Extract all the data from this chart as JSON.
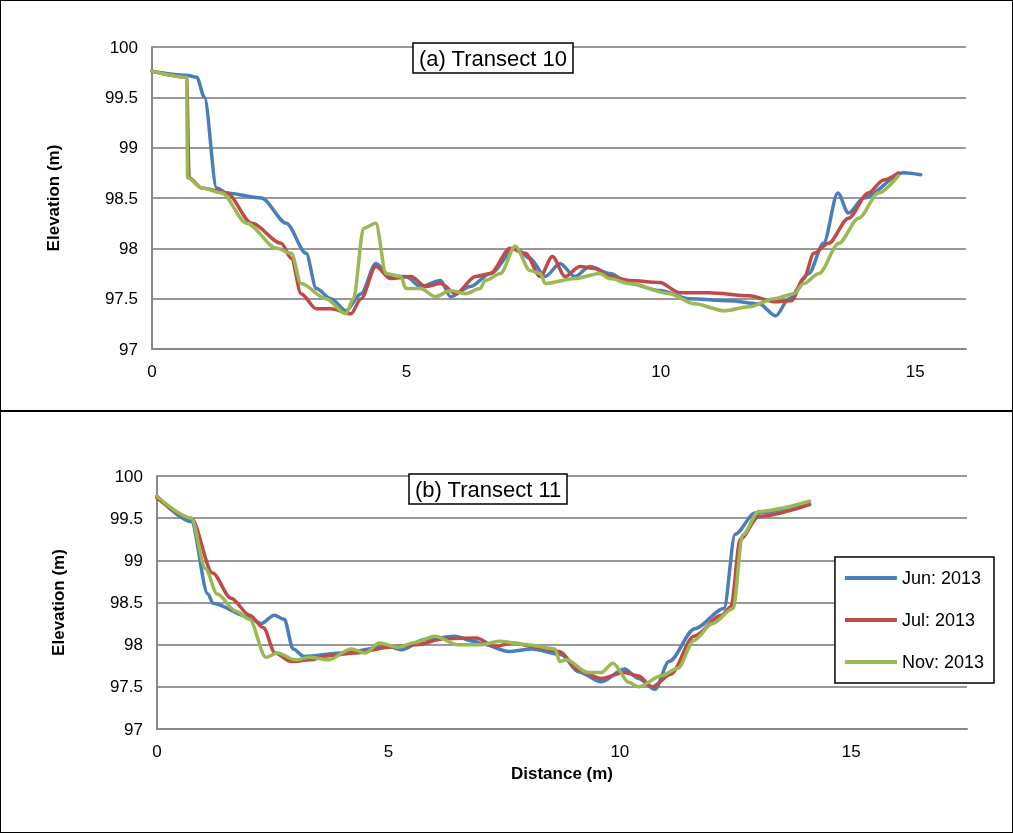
{
  "chart_data": [
    {
      "type": "line",
      "title": "(a) Transect 10",
      "ylabel": "Elevation (m)",
      "xlim": [
        0,
        16
      ],
      "xticks": [
        0,
        5,
        10,
        15
      ],
      "ylim": [
        97,
        100
      ],
      "yticks": [
        97,
        97.5,
        98,
        98.5,
        99,
        99.5,
        100
      ],
      "grid": "y",
      "series": [
        {
          "color": "#4a7ebb",
          "x": [
            0,
            0.68,
            0.88,
            1.03,
            1.27,
            1.47,
            2.15,
            2.64,
            3.03,
            3.23,
            3.52,
            3.81,
            4.11,
            4.4,
            4.69,
            4.99,
            5.28,
            5.67,
            5.87,
            6.26,
            6.65,
            7.14,
            7.43,
            7.73,
            8.02,
            8.31,
            8.61,
            9.0,
            9.39,
            9.98,
            10.56,
            11.34,
            11.93,
            12.26,
            12.52,
            12.91,
            13.2,
            13.48,
            13.69,
            13.99,
            14.77,
            15.11
          ],
          "values": [
            99.76,
            99.72,
            99.7,
            99.5,
            98.6,
            98.55,
            98.5,
            98.25,
            97.95,
            97.6,
            97.5,
            97.38,
            97.55,
            97.85,
            97.72,
            97.72,
            97.62,
            97.68,
            97.52,
            97.62,
            97.75,
            98.0,
            97.9,
            97.72,
            97.85,
            97.72,
            97.82,
            97.75,
            97.65,
            97.58,
            97.5,
            97.48,
            97.45,
            97.33,
            97.5,
            97.75,
            98.05,
            98.55,
            98.35,
            98.5,
            98.75,
            98.73
          ]
        },
        {
          "color": "#be4b48",
          "x": [
            0,
            0.68,
            0.73,
            0.98,
            1.47,
            1.96,
            2.54,
            2.74,
            2.93,
            3.23,
            3.52,
            3.91,
            4.11,
            4.4,
            4.69,
            5.09,
            5.38,
            5.67,
            5.97,
            6.36,
            6.65,
            7.04,
            7.34,
            7.63,
            7.87,
            8.12,
            8.41,
            8.7,
            9.0,
            9.39,
            9.98,
            10.37,
            10.95,
            11.74,
            12.23,
            12.57,
            12.81,
            13.01,
            13.3,
            13.69,
            14.08,
            14.38,
            14.67
          ],
          "values": [
            99.76,
            99.7,
            98.7,
            98.6,
            98.55,
            98.25,
            98.05,
            97.9,
            97.55,
            97.4,
            97.4,
            97.35,
            97.5,
            97.82,
            97.7,
            97.72,
            97.62,
            97.65,
            97.55,
            97.72,
            97.75,
            98.0,
            97.95,
            97.72,
            97.92,
            97.72,
            97.82,
            97.8,
            97.72,
            97.68,
            97.66,
            97.56,
            97.56,
            97.53,
            97.47,
            97.48,
            97.7,
            97.95,
            98.05,
            98.3,
            98.55,
            98.68,
            98.75
          ]
        },
        {
          "color": "#98b954",
          "x": [
            0,
            0.68,
            0.7,
            0.98,
            1.37,
            1.86,
            2.45,
            2.74,
            2.93,
            3.42,
            3.81,
            3.96,
            4.16,
            4.4,
            4.6,
            4.89,
            4.99,
            5.28,
            5.57,
            5.87,
            6.16,
            6.45,
            6.55,
            6.85,
            7.14,
            7.43,
            7.63,
            7.73,
            8.31,
            8.8,
            9.0,
            9.39,
            10.17,
            10.66,
            11.25,
            11.74,
            12.23,
            12.62,
            12.81,
            13.11,
            13.5,
            13.89,
            14.28,
            14.67
          ],
          "values": [
            99.76,
            99.7,
            98.7,
            98.6,
            98.55,
            98.25,
            98.0,
            97.95,
            97.65,
            97.5,
            97.35,
            97.5,
            98.2,
            98.25,
            97.75,
            97.72,
            97.6,
            97.6,
            97.52,
            97.58,
            97.55,
            97.6,
            97.68,
            97.75,
            98.02,
            97.78,
            97.75,
            97.65,
            97.7,
            97.75,
            97.7,
            97.65,
            97.55,
            97.45,
            97.38,
            97.42,
            97.5,
            97.55,
            97.65,
            97.75,
            98.05,
            98.3,
            98.55,
            98.72
          ]
        }
      ]
    },
    {
      "type": "line",
      "title": "(b) Transect 11",
      "xlabel": "Distance (m)",
      "ylabel": "Elevation (m)",
      "xlim": [
        0,
        17.5
      ],
      "xticks": [
        0,
        5,
        10,
        15
      ],
      "ylim": [
        97,
        100
      ],
      "yticks": [
        97,
        97.5,
        98,
        98.5,
        99,
        99.5,
        100
      ],
      "grid": "y",
      "legend": "right",
      "series": [
        {
          "name": "Jun: 2013",
          "color": "#4a7ebb",
          "x": [
            0,
            0.74,
            1.1,
            1.21,
            1.97,
            2.25,
            2.53,
            2.75,
            2.94,
            3.18,
            3.98,
            5.0,
            5.28,
            5.78,
            6.43,
            6.86,
            7.01,
            7.6,
            8.1,
            8.74,
            9.1,
            9.6,
            10.1,
            10.4,
            10.76,
            11.06,
            11.62,
            12.25,
            12.49,
            12.92,
            14.09
          ],
          "values": [
            99.76,
            99.46,
            98.6,
            98.49,
            98.33,
            98.25,
            98.35,
            98.3,
            97.95,
            97.86,
            97.9,
            97.98,
            97.94,
            98.06,
            98.1,
            98.04,
            98.01,
            97.92,
            97.95,
            97.88,
            97.68,
            97.56,
            97.71,
            97.6,
            97.47,
            97.8,
            98.19,
            98.43,
            99.31,
            99.56,
            99.68
          ]
        },
        {
          "name": "Jul: 2013",
          "color": "#be4b48",
          "x": [
            0,
            0.74,
            1.2,
            1.6,
            2.0,
            2.3,
            2.55,
            2.9,
            3.3,
            3.7,
            4.3,
            5.0,
            5.6,
            6.2,
            6.9,
            7.3,
            7.7,
            8.2,
            8.7,
            9.1,
            9.6,
            10.1,
            10.4,
            10.7,
            11.1,
            11.6,
            12.2,
            12.4,
            12.6,
            13.0,
            14.1
          ],
          "values": [
            99.74,
            99.5,
            98.85,
            98.55,
            98.35,
            98.2,
            97.9,
            97.8,
            97.82,
            97.87,
            97.9,
            97.97,
            98.0,
            98.07,
            98.08,
            97.98,
            98.02,
            97.97,
            97.92,
            97.7,
            97.6,
            97.67,
            97.63,
            97.5,
            97.65,
            98.1,
            98.35,
            98.45,
            99.25,
            99.52,
            99.66
          ]
        },
        {
          "name": "Nov: 2013",
          "color": "#98b954",
          "x": [
            0,
            0.74,
            1.05,
            1.3,
            1.7,
            2.0,
            2.35,
            2.6,
            3.0,
            3.3,
            3.7,
            4.2,
            4.5,
            4.8,
            5.2,
            5.6,
            6.0,
            6.5,
            7.0,
            7.4,
            8.0,
            8.6,
            8.7,
            8.85,
            9.3,
            9.6,
            9.85,
            10.2,
            10.4,
            10.9,
            11.25,
            11.6,
            12.0,
            12.45,
            12.65,
            13.0,
            14.1
          ],
          "values": [
            99.76,
            99.5,
            98.9,
            98.6,
            98.4,
            98.3,
            97.85,
            97.9,
            97.82,
            97.85,
            97.82,
            97.95,
            97.9,
            98.02,
            97.97,
            98.03,
            98.1,
            98.0,
            98.0,
            98.04,
            98.0,
            97.95,
            97.8,
            97.82,
            97.67,
            97.67,
            97.78,
            97.55,
            97.5,
            97.63,
            97.72,
            98.05,
            98.25,
            98.43,
            99.3,
            99.58,
            99.7
          ]
        }
      ]
    }
  ]
}
